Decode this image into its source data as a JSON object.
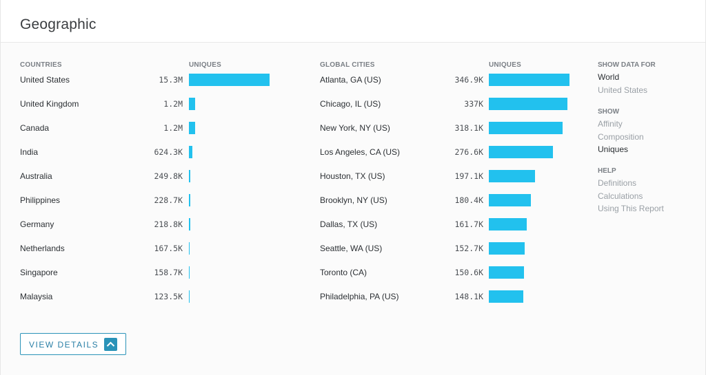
{
  "header": {
    "title": "Geographic"
  },
  "countries": {
    "heading": "COUNTRIES",
    "uniques_heading": "UNIQUES",
    "max": 15300000,
    "rows": [
      {
        "name": "United States",
        "label": "15.3M",
        "value": 15300000
      },
      {
        "name": "United Kingdom",
        "label": "1.2M",
        "value": 1200000
      },
      {
        "name": "Canada",
        "label": "1.2M",
        "value": 1200000
      },
      {
        "name": "India",
        "label": "624.3K",
        "value": 624300
      },
      {
        "name": "Australia",
        "label": "249.8K",
        "value": 249800
      },
      {
        "name": "Philippines",
        "label": "228.7K",
        "value": 228700
      },
      {
        "name": "Germany",
        "label": "218.8K",
        "value": 218800
      },
      {
        "name": "Netherlands",
        "label": "167.5K",
        "value": 167500
      },
      {
        "name": "Singapore",
        "label": "158.7K",
        "value": 158700
      },
      {
        "name": "Malaysia",
        "label": "123.5K",
        "value": 123500
      }
    ]
  },
  "cities": {
    "heading": "GLOBAL CITIES",
    "uniques_heading": "UNIQUES",
    "max": 346900,
    "rows": [
      {
        "name": "Atlanta, GA (US)",
        "label": "346.9K",
        "value": 346900
      },
      {
        "name": "Chicago, IL (US)",
        "label": "337K",
        "value": 337000
      },
      {
        "name": "New York, NY (US)",
        "label": "318.1K",
        "value": 318100
      },
      {
        "name": "Los Angeles, CA (US)",
        "label": "276.6K",
        "value": 276600
      },
      {
        "name": "Houston, TX (US)",
        "label": "197.1K",
        "value": 197100
      },
      {
        "name": "Brooklyn, NY (US)",
        "label": "180.4K",
        "value": 180400
      },
      {
        "name": "Dallas, TX (US)",
        "label": "161.7K",
        "value": 161700
      },
      {
        "name": "Seattle, WA (US)",
        "label": "152.7K",
        "value": 152700
      },
      {
        "name": "Toronto (CA)",
        "label": "150.6K",
        "value": 150600
      },
      {
        "name": "Philadelphia, PA (US)",
        "label": "148.1K",
        "value": 148100
      }
    ]
  },
  "sidebar": {
    "show_data_for": {
      "heading": "SHOW DATA FOR",
      "items": [
        {
          "label": "World",
          "active": true
        },
        {
          "label": "United States",
          "active": false
        }
      ]
    },
    "show": {
      "heading": "SHOW",
      "items": [
        {
          "label": "Affinity",
          "active": false
        },
        {
          "label": "Composition",
          "active": false
        },
        {
          "label": "Uniques",
          "active": true
        }
      ]
    },
    "help": {
      "heading": "HELP",
      "items": [
        {
          "label": "Definitions",
          "active": false
        },
        {
          "label": "Calculations",
          "active": false
        },
        {
          "label": "Using This Report",
          "active": false
        }
      ]
    }
  },
  "details_button": {
    "label": "VIEW DETAILS",
    "icon": "chevron-up-icon"
  },
  "colors": {
    "bar": "#22c1ee",
    "accent": "#2a93b8"
  }
}
